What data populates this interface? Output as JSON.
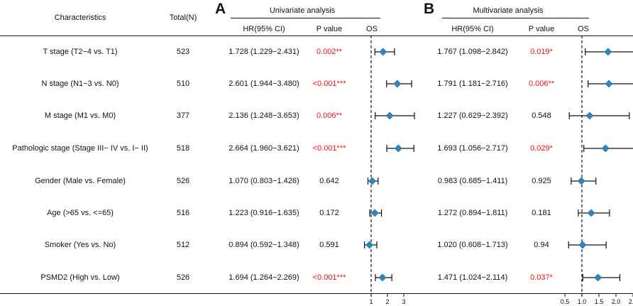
{
  "headers": {
    "characteristics": "Characteristics",
    "total": "Total(N)",
    "panel_a": "A",
    "panel_b": "B",
    "univariate": "Univariate analysis",
    "multivariate": "Multivariate analysis",
    "hr": "HR(95% CI)",
    "pvalue": "P value",
    "os": "OS"
  },
  "colors": {
    "significant": "#e8131a",
    "marker": "#2e86c1",
    "text": "#111111"
  },
  "chart_data": [
    {
      "type": "forest",
      "title": "Univariate analysis",
      "xlabel": "OS",
      "reference_line": 1,
      "xlim": [
        0.75,
        3.6
      ],
      "ticks": [
        1,
        2,
        3
      ],
      "tick_labels": [
        "1",
        "2",
        "3"
      ],
      "rows": [
        {
          "label": "T stage (T2−4 vs. T1)",
          "total": "523",
          "hr_text": "1.728 (1.229−2.431)",
          "p_text": "0.002**",
          "significant": true,
          "hr": 1.728,
          "lo": 1.229,
          "hi": 2.431
        },
        {
          "label": "N stage (N1−3 vs. N0)",
          "total": "510",
          "hr_text": "2.601 (1.944−3.480)",
          "p_text": "<0.001***",
          "significant": true,
          "hr": 2.601,
          "lo": 1.944,
          "hi": 3.48
        },
        {
          "label": "M stage (M1 vs. M0)",
          "total": "377",
          "hr_text": "2.136 (1.248−3.653)",
          "p_text": "0.006**",
          "significant": true,
          "hr": 2.136,
          "lo": 1.248,
          "hi": 3.653
        },
        {
          "label": "Pathologic stage (Stage III− IV vs.  I− II)",
          "total": "518",
          "hr_text": "2.664 (1.960−3.621)",
          "p_text": "<0.001***",
          "significant": true,
          "hr": 2.664,
          "lo": 1.96,
          "hi": 3.621
        },
        {
          "label": "Gender (Male vs. Female)",
          "total": "526",
          "hr_text": "1.070 (0.803−1.426)",
          "p_text": "0.642",
          "significant": false,
          "hr": 1.07,
          "lo": 0.803,
          "hi": 1.426
        },
        {
          "label": "Age (>65 vs. <=65)",
          "total": "516",
          "hr_text": "1.223 (0.916−1.635)",
          "p_text": "0.172",
          "significant": false,
          "hr": 1.223,
          "lo": 0.916,
          "hi": 1.635
        },
        {
          "label": "Smoker (Yes vs. No)",
          "total": "512",
          "hr_text": "0.894 (0.592−1.348)",
          "p_text": "0.591",
          "significant": false,
          "hr": 0.894,
          "lo": 0.592,
          "hi": 1.348
        },
        {
          "label": "PSMD2 (High vs. Low)",
          "total": "526",
          "hr_text": "1.694 (1.264−2.269)",
          "p_text": "<0.001***",
          "significant": true,
          "hr": 1.694,
          "lo": 1.264,
          "hi": 2.269
        }
      ]
    },
    {
      "type": "forest",
      "title": "Multivariate analysis",
      "xlabel": "OS",
      "reference_line": 1,
      "xlim": [
        0.42,
        2.62
      ],
      "ticks": [
        0.5,
        1.0,
        1.5,
        2.0,
        2.5
      ],
      "tick_labels": [
        "0.5",
        "1.0",
        "1.5",
        "2.0",
        "2.5"
      ],
      "rows": [
        {
          "hr_text": "1.767 (1.098−2.842)",
          "p_text": "0.019*",
          "significant": true,
          "hr": 1.767,
          "lo": 1.098,
          "hi": 2.842
        },
        {
          "hr_text": "1.791 (1.181−2.716)",
          "p_text": "0.006**",
          "significant": true,
          "hr": 1.791,
          "lo": 1.181,
          "hi": 2.716
        },
        {
          "hr_text": "1.227 (0.629−2.392)",
          "p_text": "0.548",
          "significant": false,
          "hr": 1.227,
          "lo": 0.629,
          "hi": 2.392
        },
        {
          "hr_text": "1.693 (1.056−2.717)",
          "p_text": "0.029*",
          "significant": true,
          "hr": 1.693,
          "lo": 1.056,
          "hi": 2.717
        },
        {
          "hr_text": "0.983 (0.685−1.411)",
          "p_text": "0.925",
          "significant": false,
          "hr": 0.983,
          "lo": 0.685,
          "hi": 1.411
        },
        {
          "hr_text": "1.272 (0.894−1.811)",
          "p_text": "0.181",
          "significant": false,
          "hr": 1.272,
          "lo": 0.894,
          "hi": 1.811
        },
        {
          "hr_text": "1.020 (0.608−1.713)",
          "p_text": "0.94",
          "significant": false,
          "hr": 1.02,
          "lo": 0.608,
          "hi": 1.713
        },
        {
          "hr_text": "1.471 (1.024−2.114)",
          "p_text": "0.037*",
          "significant": true,
          "hr": 1.471,
          "lo": 1.024,
          "hi": 2.114
        }
      ]
    }
  ]
}
